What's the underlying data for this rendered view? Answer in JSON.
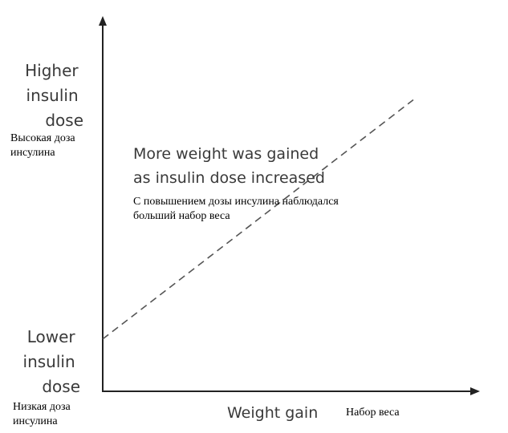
{
  "chart_data": {
    "type": "line",
    "xlabel": "Weight gain",
    "xlabel_ru": "Набор веса",
    "y_high_label": [
      "Higher",
      "insulin",
      "dose"
    ],
    "y_high_label_ru": [
      "Высокая доза",
      "инсулина"
    ],
    "y_low_label": [
      "Lower",
      "insulin",
      "dose"
    ],
    "y_low_label_ru": [
      "Низкая доза",
      "инсулина"
    ],
    "annotation": [
      "More weight was gained",
      "as insulin dose increased"
    ],
    "annotation_ru": [
      "С повышением дозы инсулина наблюдался",
      "больший набор веса"
    ],
    "x_scale": "qualitative",
    "y_scale": "qualitative",
    "line_style": "dashed",
    "series": [
      {
        "x": [
          0,
          1
        ],
        "y": [
          0.14,
          0.78
        ]
      }
    ],
    "xlim": [
      0,
      1
    ],
    "ylim": [
      0,
      1
    ],
    "colors": {
      "axis": "#222222",
      "line": "#555555"
    }
  }
}
